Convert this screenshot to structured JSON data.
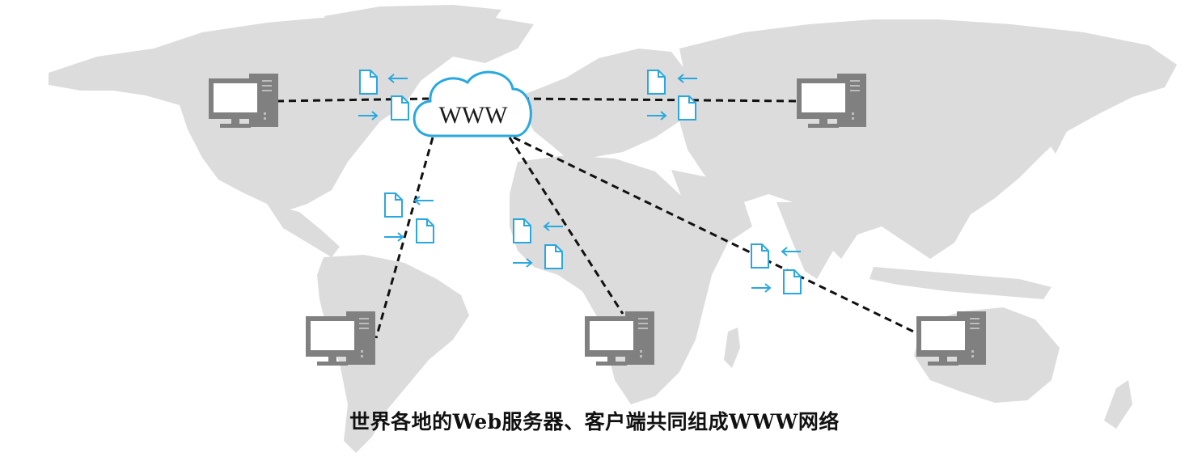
{
  "caption": "世界各地的Web服务器、客户端共同组成WWW网络",
  "cloud": {
    "label": "WWW"
  },
  "colors": {
    "land": "#dcdcdc",
    "computer": "#808080",
    "link": "#111111",
    "document": "#29a8e0"
  },
  "icons": [
    "computer-icon",
    "cloud-icon",
    "document-icon",
    "arrow-left-icon",
    "arrow-right-icon"
  ]
}
